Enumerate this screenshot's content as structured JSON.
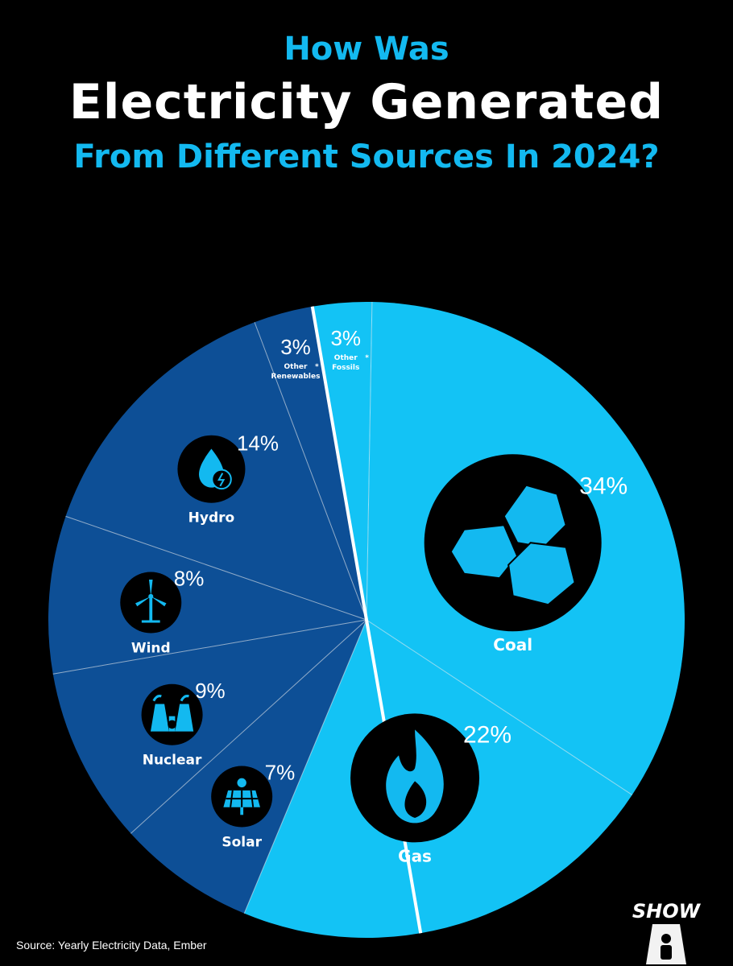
{
  "header": {
    "line1": "How Was",
    "line2": "Electricity Generated",
    "line3": "From Different Sources In 2024?"
  },
  "chart_data": {
    "type": "pie",
    "slices": [
      {
        "label": "Hydro",
        "value": 14,
        "display": "14%",
        "color": "#0d4f96",
        "icon": "hydro-icon",
        "group": "low-carbon"
      },
      {
        "label": "Other Renewables",
        "value": 3,
        "display": "3%",
        "color": "#0d4f96",
        "icon": "",
        "group": "low-carbon",
        "marker": "*"
      },
      {
        "label": "Other Fossils",
        "value": 3,
        "display": "3%",
        "color": "#13c3f5",
        "icon": "",
        "group": "fossil",
        "marker": "*"
      },
      {
        "label": "Coal",
        "value": 34,
        "display": "34%",
        "color": "#13c3f5",
        "icon": "coal-icon",
        "group": "fossil"
      },
      {
        "label": "Gas",
        "value": 22,
        "display": "22%",
        "color": "#13c3f5",
        "icon": "gas-flame-icon",
        "group": "fossil"
      },
      {
        "label": "Solar",
        "value": 7,
        "display": "7%",
        "color": "#0d4f96",
        "icon": "solar-panel-icon",
        "group": "low-carbon"
      },
      {
        "label": "Nuclear",
        "value": 9,
        "display": "9%",
        "color": "#0d4f96",
        "icon": "nuclear-plant-icon",
        "group": "low-carbon"
      },
      {
        "label": "Wind",
        "value": 8,
        "display": "8%",
        "color": "#0d4f96",
        "icon": "wind-turbine-icon",
        "group": "low-carbon"
      }
    ]
  },
  "footer": {
    "source": "Source: Yearly Electricity Data, Ember",
    "logo": "SHOW"
  }
}
